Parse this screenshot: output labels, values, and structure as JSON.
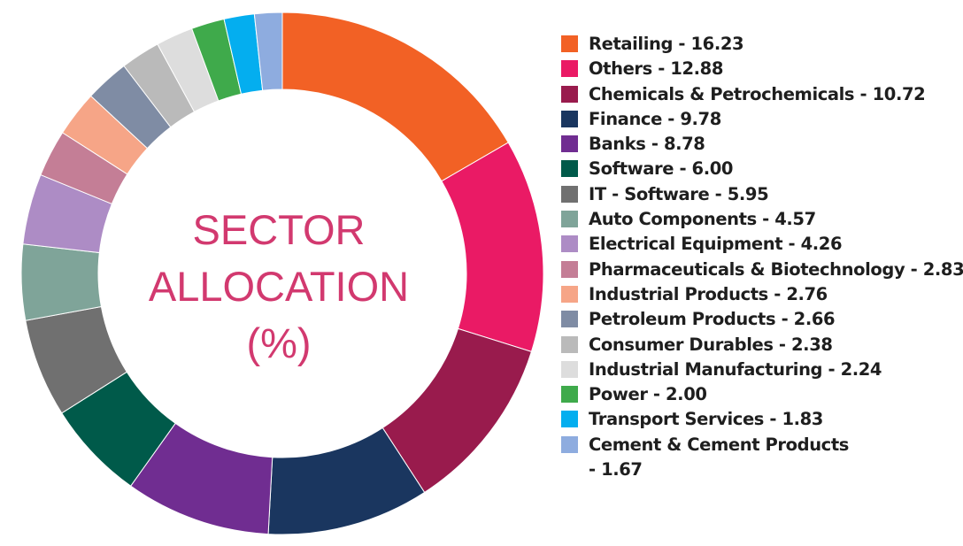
{
  "chart_data": {
    "type": "pie",
    "title": "SECTOR ALLOCATION (%)",
    "title_lines": [
      "SECTOR",
      "ALLOCATION",
      "(%)"
    ],
    "legend_position": "right",
    "slices": [
      {
        "label": "Retailing",
        "value": 16.23,
        "display": "Retailing - 16.23",
        "color": "#f26125"
      },
      {
        "label": "Others",
        "value": 12.88,
        "display": "Others - 12.88",
        "color": "#ea1a65"
      },
      {
        "label": "Chemicals & Petrochemicals",
        "value": 10.72,
        "display": "Chemicals & Petrochemicals - 10.72",
        "color": "#991b4d"
      },
      {
        "label": "Finance",
        "value": 9.78,
        "display": "Finance - 9.78",
        "color": "#1a365f"
      },
      {
        "label": "Banks",
        "value": 8.78,
        "display": "Banks - 8.78",
        "color": "#702d91"
      },
      {
        "label": "Software",
        "value": 6.0,
        "display": "Software - 6.00",
        "color": "#005a4a"
      },
      {
        "label": "IT - Software",
        "value": 5.95,
        "display": "IT - Software - 5.95",
        "color": "#707070"
      },
      {
        "label": "Auto Components",
        "value": 4.57,
        "display": "Auto Components - 4.57",
        "color": "#7fa499"
      },
      {
        "label": "Electrical Equipment",
        "value": 4.26,
        "display": "Electrical Equipment - 4.26",
        "color": "#ad8cc5"
      },
      {
        "label": "Pharmaceuticals & Biotechnology",
        "value": 2.83,
        "display": "Pharmaceuticals & Biotechnology - 2.83",
        "color": "#c47e96"
      },
      {
        "label": "Industrial Products",
        "value": 2.76,
        "display": "Industrial Products - 2.76",
        "color": "#f6a587"
      },
      {
        "label": "Petroleum Products",
        "value": 2.66,
        "display": "Petroleum Products - 2.66",
        "color": "#7f8ca4"
      },
      {
        "label": "Consumer Durables",
        "value": 2.38,
        "display": "Consumer Durables - 2.38",
        "color": "#bababa"
      },
      {
        "label": "Industrial Manufacturing",
        "value": 2.24,
        "display": "Industrial Manufacturing - 2.24",
        "color": "#dddddd"
      },
      {
        "label": "Power",
        "value": 2.0,
        "display": "Power - 2.00",
        "color": "#3faa4b"
      },
      {
        "label": "Transport Services",
        "value": 1.83,
        "display": "Transport Services - 1.83",
        "color": "#04aeef"
      },
      {
        "label": "Cement & Cement Products",
        "value": 1.67,
        "display": "Cement & Cement Products - 1.67",
        "color": "#8eacdf"
      }
    ]
  }
}
